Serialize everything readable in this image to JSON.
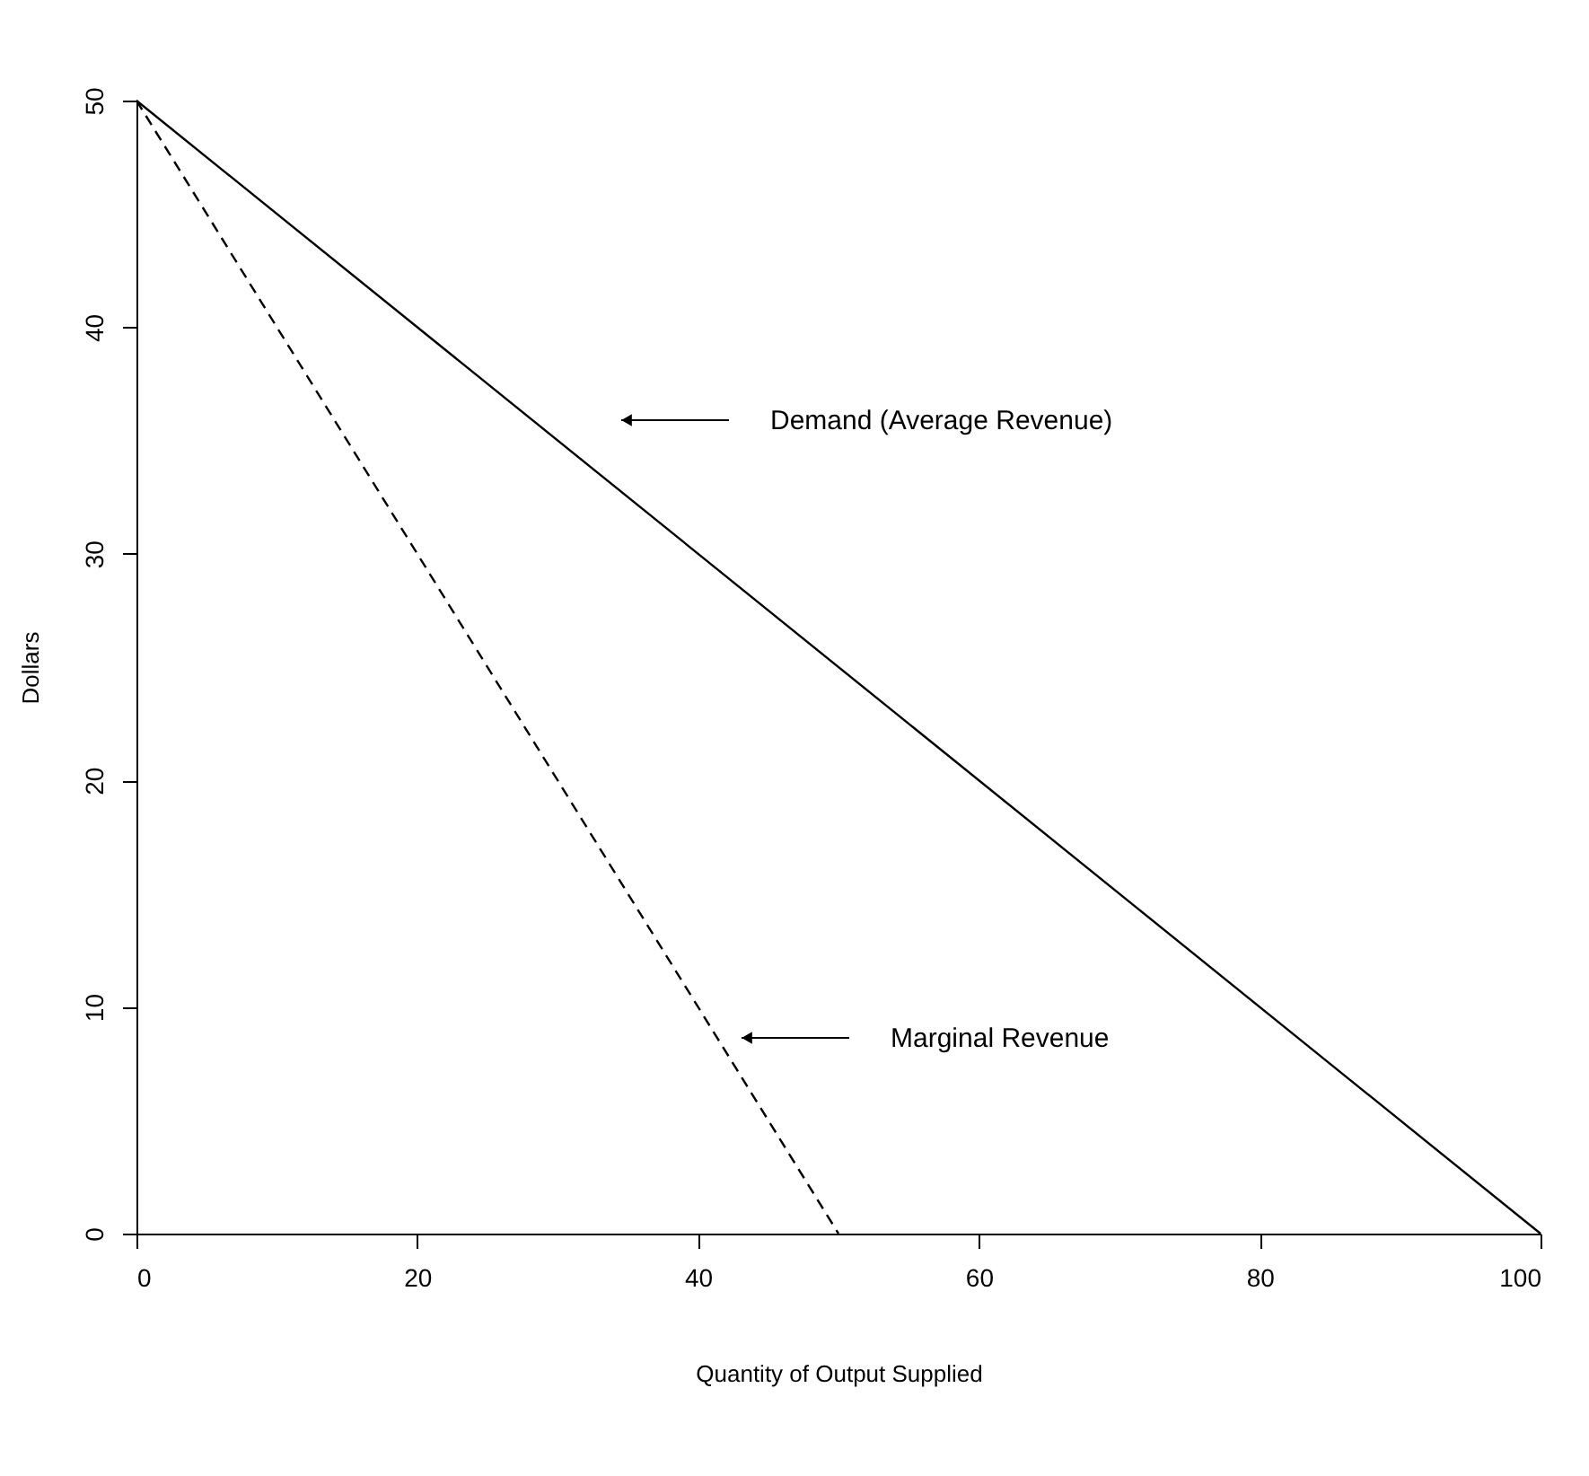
{
  "chart_data": {
    "type": "line",
    "xlabel": "Quantity of Output Supplied",
    "ylabel": "Dollars",
    "xlim": [
      0,
      100
    ],
    "ylim": [
      0,
      50
    ],
    "xticks": [
      0,
      20,
      40,
      60,
      80,
      100
    ],
    "yticks": [
      0,
      10,
      20,
      30,
      40,
      50
    ],
    "grid": false,
    "series": [
      {
        "color": "#000000",
        "line_style": "solid",
        "x": [
          0,
          100
        ],
        "values": [
          50,
          0
        ]
      },
      {
        "color": "#000000",
        "line_style": "dashed",
        "x": [
          0,
          50
        ],
        "values": [
          50,
          0
        ]
      }
    ],
    "annotations": [
      "Demand  (Average Revenue)",
      "Marginal Revenue"
    ]
  }
}
